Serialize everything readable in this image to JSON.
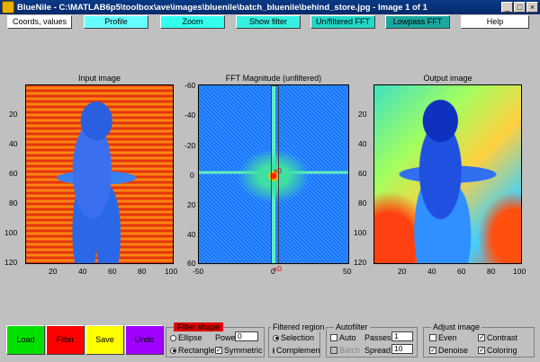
{
  "window": {
    "title": "BlueNile - C:\\MATLAB6p5\\toolbox\\ave\\images\\bluenile\\batch_bluenile\\behind_store.jpg - Image  1  of  1"
  },
  "toolbar": {
    "coords": "Coords, values",
    "profile": "Profile",
    "zoom": "Zoom",
    "show_filter": "Show filter",
    "unfiltered_fft": "Un/filtered FFT",
    "lowpass_fft": "Lowpass FFT",
    "help": "Help"
  },
  "input_image": {
    "title": "Input image",
    "xticks": [
      "20",
      "40",
      "60",
      "80",
      "100"
    ],
    "yticks": [
      "20",
      "40",
      "60",
      "80",
      "100",
      "120"
    ]
  },
  "fft": {
    "title": "FFT Magnitude (unfiltered)",
    "xticks": [
      "-50",
      "0",
      "50"
    ],
    "yticks": [
      "-60",
      "-40",
      "-20",
      "0",
      "20",
      "40",
      "60"
    ],
    "marker": "x0"
  },
  "output_image": {
    "title": "Output image",
    "xticks": [
      "20",
      "40",
      "60",
      "80",
      "100"
    ],
    "yticks": [
      "20",
      "40",
      "60",
      "80",
      "100",
      "120"
    ]
  },
  "buttons": {
    "load": "Load",
    "filter": "Filter",
    "save": "Save",
    "undo": "Undo"
  },
  "filter_shape": {
    "title": "Filter shape",
    "ellipse": "Ellipse",
    "rectangle": "Rectangle",
    "power_label": "Power",
    "power_value": "0",
    "symmetric": "Symmetric"
  },
  "filtered_region": {
    "title": "Filtered region",
    "selection": "Selection",
    "complement": "Complemen"
  },
  "autofilter": {
    "title": "Autofilter",
    "auto": "Auto",
    "batch": "Batch",
    "passes_label": "Passes",
    "passes_value": "1",
    "spread_label": "Spread",
    "spread_value": "10"
  },
  "adjust_image": {
    "title": "Adjust image",
    "even": "Even",
    "denoise": "Denoise",
    "contrast": "Contrast",
    "coloring": "Coloring"
  },
  "colors": {
    "titlebar": "#0a3a84",
    "cyan_button": "#66ffff",
    "teal_button": "#1aa8a0",
    "load": "#00e000",
    "filter": "#ff0000",
    "save": "#ffff00",
    "undo": "#a000ff",
    "filter_shape_header": "#e00000"
  }
}
